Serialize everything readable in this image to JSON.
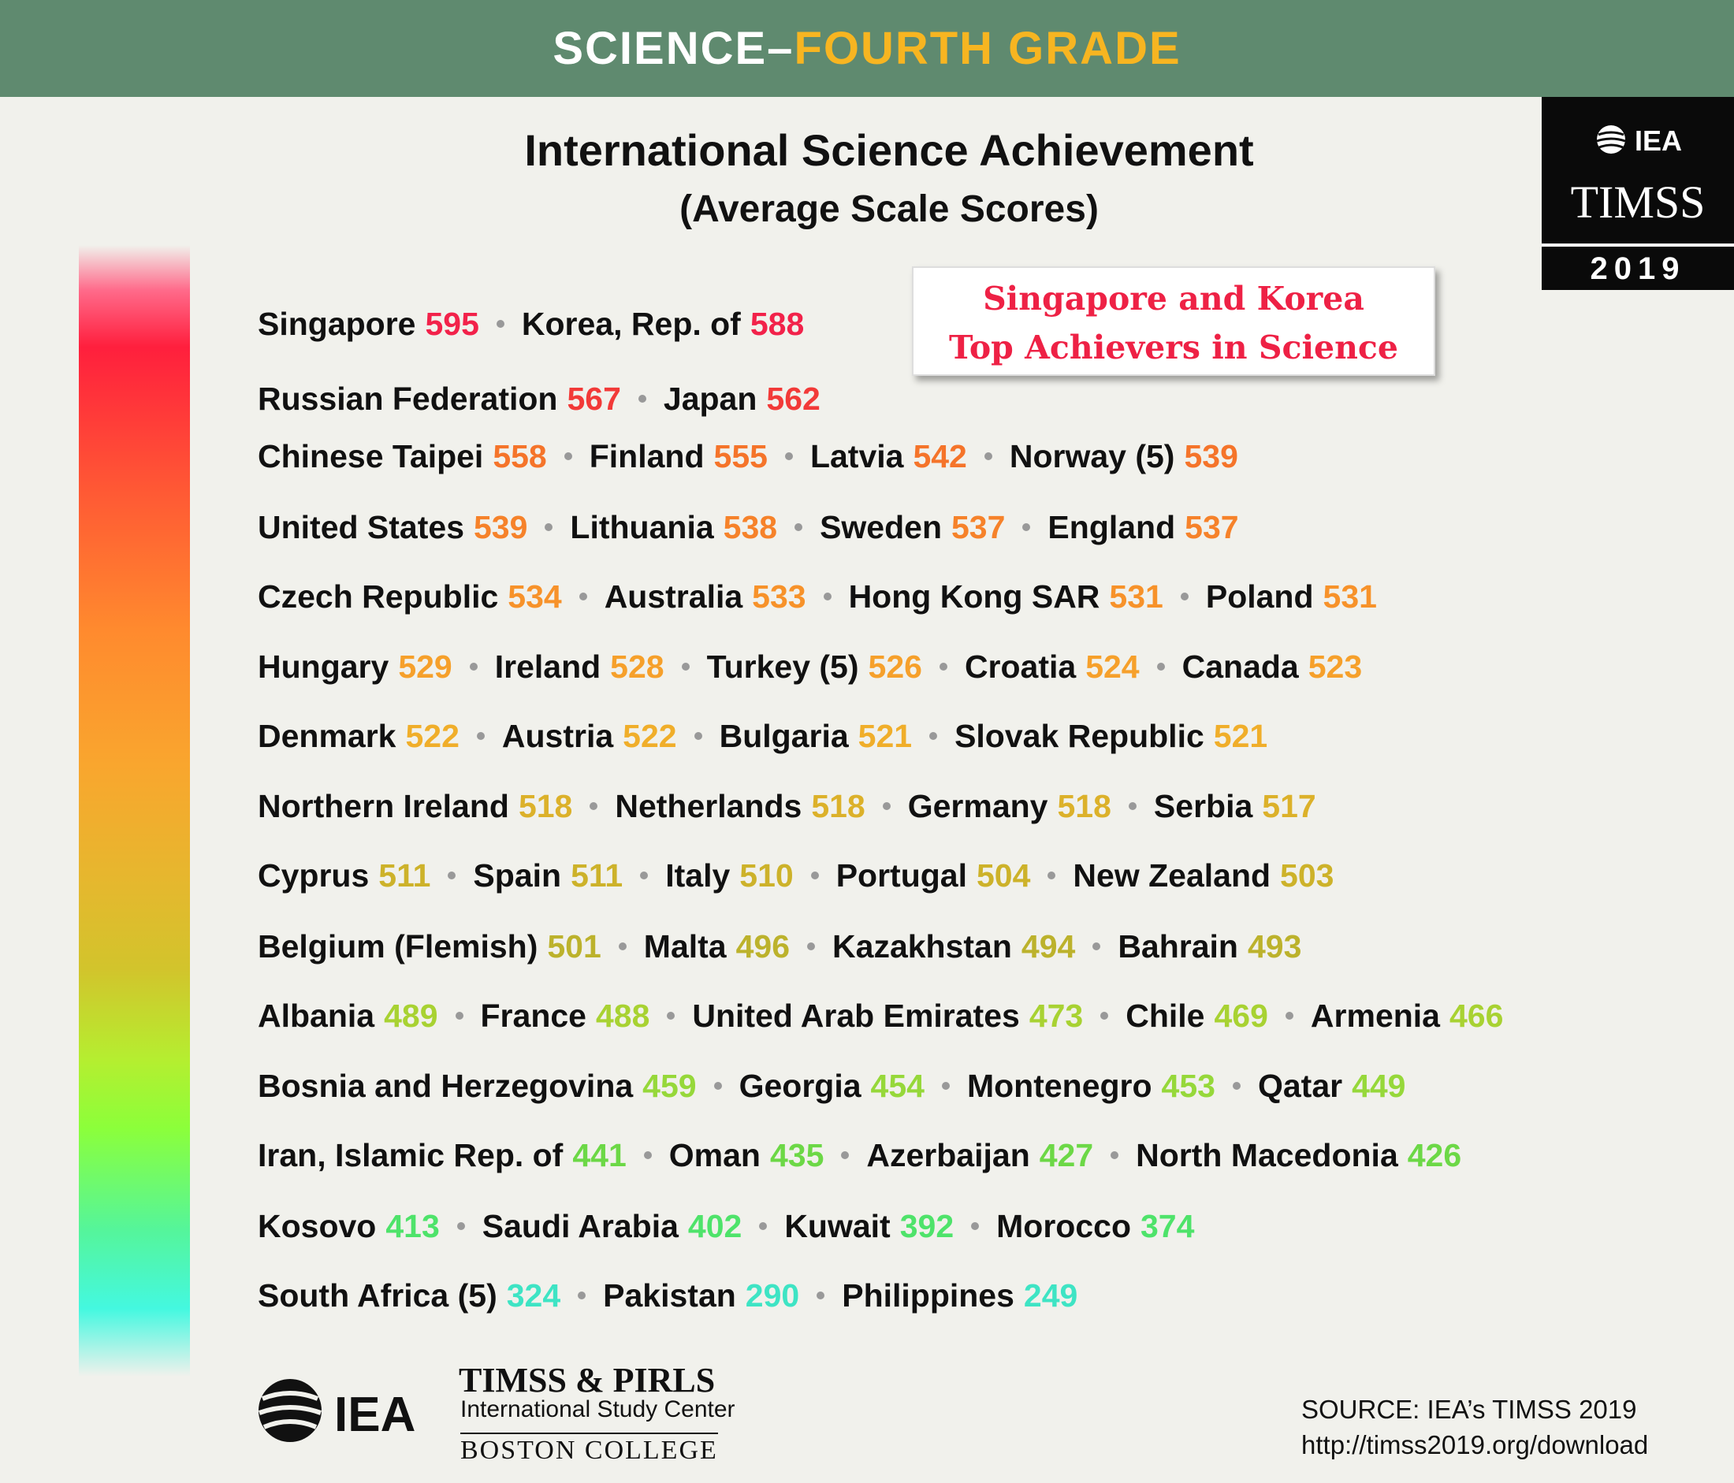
{
  "header": {
    "subject": "SCIENCE–",
    "grade": "FOURTH GRADE"
  },
  "title": "International Science Achievement",
  "subtitle": "(Average Scale Scores)",
  "callout": [
    "Singapore and Korea",
    "Top Achievers in Science"
  ],
  "logo": {
    "org": "IEA",
    "study": "TIMSS",
    "year": "2019"
  },
  "rows": [
    {
      "color": "#f2224a",
      "entries": [
        {
          "name": "Singapore",
          "score": 595
        },
        {
          "name": "Korea, Rep. of",
          "score": 588
        }
      ]
    },
    {
      "color": "#f23a38",
      "entries": [
        {
          "name": "Russian Federation",
          "score": 567
        },
        {
          "name": "Japan",
          "score": 562
        }
      ]
    },
    {
      "color": "#f5742a",
      "entries": [
        {
          "name": "Chinese Taipei",
          "score": 558
        },
        {
          "name": "Finland",
          "score": 555
        },
        {
          "name": "Latvia",
          "score": 542
        },
        {
          "name": "Norway (5)",
          "score": 539
        }
      ]
    },
    {
      "color": "#f6822a",
      "entries": [
        {
          "name": "United States",
          "score": 539
        },
        {
          "name": "Lithuania",
          "score": 538
        },
        {
          "name": "Sweden",
          "score": 537
        },
        {
          "name": "England",
          "score": 537
        }
      ]
    },
    {
      "color": "#f7922a",
      "entries": [
        {
          "name": "Czech Republic",
          "score": 534
        },
        {
          "name": "Australia",
          "score": 533
        },
        {
          "name": "Hong Kong SAR",
          "score": 531
        },
        {
          "name": "Poland",
          "score": 531
        }
      ]
    },
    {
      "color": "#f6a02b",
      "entries": [
        {
          "name": "Hungary",
          "score": 529
        },
        {
          "name": "Ireland",
          "score": 528
        },
        {
          "name": "Turkey (5)",
          "score": 526
        },
        {
          "name": "Croatia",
          "score": 524
        },
        {
          "name": "Canada",
          "score": 523
        }
      ]
    },
    {
      "color": "#f0ae2a",
      "entries": [
        {
          "name": "Denmark",
          "score": 522
        },
        {
          "name": "Austria",
          "score": 522
        },
        {
          "name": "Bulgaria",
          "score": 521
        },
        {
          "name": "Slovak Republic",
          "score": 521
        }
      ]
    },
    {
      "color": "#dcb12a",
      "entries": [
        {
          "name": "Northern Ireland",
          "score": 518
        },
        {
          "name": "Netherlands",
          "score": 518
        },
        {
          "name": "Germany",
          "score": 518
        },
        {
          "name": "Serbia",
          "score": 517
        }
      ]
    },
    {
      "color": "#cdb22a",
      "entries": [
        {
          "name": "Cyprus",
          "score": 511
        },
        {
          "name": "Spain",
          "score": 511
        },
        {
          "name": "Italy",
          "score": 510
        },
        {
          "name": "Portugal",
          "score": 504
        },
        {
          "name": "New Zealand",
          "score": 503
        }
      ]
    },
    {
      "color": "#bcb22c",
      "entries": [
        {
          "name": "Belgium (Flemish)",
          "score": 501
        },
        {
          "name": "Malta",
          "score": 496
        },
        {
          "name": "Kazakhstan",
          "score": 494
        },
        {
          "name": "Bahrain",
          "score": 493
        }
      ]
    },
    {
      "color": "#a8d232",
      "entries": [
        {
          "name": "Albania",
          "score": 489
        },
        {
          "name": "France",
          "score": 488
        },
        {
          "name": "United Arab Emirates",
          "score": 473
        },
        {
          "name": "Chile",
          "score": 469
        },
        {
          "name": "Armenia",
          "score": 466
        }
      ]
    },
    {
      "color": "#96d83a",
      "entries": [
        {
          "name": "Bosnia and Herzegovina",
          "score": 459
        },
        {
          "name": "Georgia",
          "score": 454
        },
        {
          "name": "Montenegro",
          "score": 453
        },
        {
          "name": "Qatar",
          "score": 449
        }
      ]
    },
    {
      "color": "#6cd846",
      "entries": [
        {
          "name": "Iran, Islamic Rep. of",
          "score": 441
        },
        {
          "name": "Oman",
          "score": 435
        },
        {
          "name": "Azerbaijan",
          "score": 427
        },
        {
          "name": "North Macedonia",
          "score": 426
        }
      ]
    },
    {
      "color": "#4ee36a",
      "entries": [
        {
          "name": "Kosovo",
          "score": 413
        },
        {
          "name": "Saudi Arabia",
          "score": 402
        },
        {
          "name": "Kuwait",
          "score": 392
        },
        {
          "name": "Morocco",
          "score": 374
        }
      ]
    },
    {
      "color": "#3ee4c4",
      "entries": [
        {
          "name": "South Africa (5)",
          "score": 324
        },
        {
          "name": "Pakistan",
          "score": 290
        },
        {
          "name": "Philippines",
          "score": 249
        }
      ]
    }
  ],
  "footer": {
    "org": "IEA",
    "center": [
      "TIMSS & PIRLS",
      "International Study Center",
      "BOSTON COLLEGE"
    ],
    "source": [
      "SOURCE: IEA’s TIMSS 2019",
      "http://timss2019.org/download"
    ]
  }
}
